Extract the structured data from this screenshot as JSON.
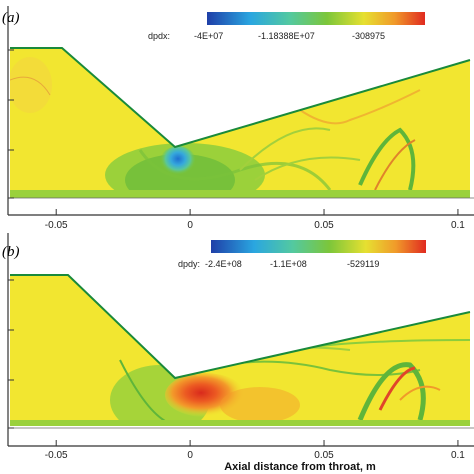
{
  "chart_data": [
    {
      "type": "contour",
      "panel_label": "(a)",
      "variable": "dpdx:",
      "colorbar_labels": [
        "-4E+07",
        "-1.18388E+07",
        "-308975"
      ],
      "colorbar_range": [
        -40000000,
        -308975
      ],
      "x_ticks": [
        "-0.05",
        "0",
        "0.05",
        "0.1"
      ],
      "x_tick_values": [
        -0.05,
        0,
        0.05,
        0.1
      ],
      "xlim": [
        -0.068,
        0.106
      ],
      "colors": {
        "background": "#f2e630",
        "wall": "#1a8a3a",
        "mid": "#8ccd3c",
        "low": "#2f7fd8",
        "high": "#e8392a"
      }
    },
    {
      "type": "contour",
      "panel_label": "(b)",
      "variable": "dpdy:",
      "colorbar_labels": [
        "-2.4E+08",
        "-1.1E+08",
        "-529119"
      ],
      "colorbar_range": [
        -240000000,
        -529119
      ],
      "x_ticks": [
        "-0.05",
        "0",
        "0.05",
        "0.1"
      ],
      "x_tick_values": [
        -0.05,
        0,
        0.05,
        0.1
      ],
      "xlim": [
        -0.068,
        0.106
      ],
      "xlabel": "Axial distance from throat, m",
      "colors": {
        "background": "#f2e630",
        "wall": "#1a8a3a",
        "mid": "#8ccd3c",
        "low": "#2f7fd8",
        "high": "#e8392a"
      }
    }
  ]
}
